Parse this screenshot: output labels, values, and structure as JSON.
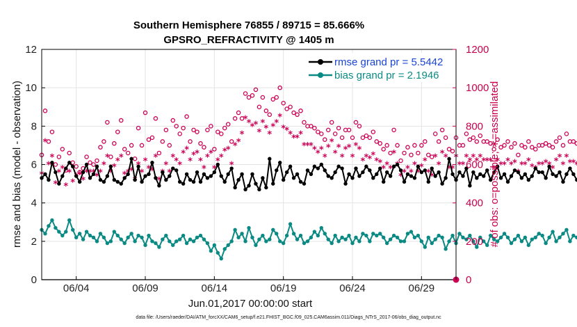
{
  "chart_data": {
    "type": "line",
    "title": "Southern Hemisphere 76855 / 89715 = 85.666%",
    "subtitle": "GPSRO_REFRACTIVITY @ 1405 m",
    "xlabel": "Jun.01,2017 00:00:00 start",
    "ylabel": "rmse and bias (model - observation)",
    "ylabel_right": "# of obs: o=possible; ∗=assimilated",
    "footnote": "data file: /Users/raeder/DAI/ATM_forcXX/CAM6_setup/f.e21.FHIST_BGC.f09_025.CAM6assim.011/Diags_NTrS_2017-06/obs_diag_output.nc",
    "xlim": [
      1.5,
      31.5
    ],
    "ylim": [
      0,
      12
    ],
    "ylim_right": [
      0,
      1200
    ],
    "grid": true,
    "legend_position": "top-right",
    "x_ticks": [
      4,
      9,
      14,
      19,
      24,
      29
    ],
    "x_tick_labels": [
      "06/04",
      "06/09",
      "06/14",
      "06/19",
      "06/24",
      "06/29"
    ],
    "y_ticks": [
      0,
      2,
      4,
      6,
      8,
      10,
      12
    ],
    "y_tick_labels": [
      "0",
      "2",
      "4",
      "6",
      "8",
      "10",
      "12"
    ],
    "y2_ticks": [
      0,
      200,
      400,
      600,
      800,
      1000,
      1200
    ],
    "y2_tick_labels": [
      "0",
      "200",
      "400",
      "600",
      "800",
      "1000",
      "1200"
    ],
    "colors": {
      "rmse": "#000000",
      "bias": "#0b8a84",
      "obs": "#cc0055",
      "grid": "#e3e3e3",
      "zero": "#b4b4b4",
      "legend_text": "#1a44d6"
    },
    "series": [
      {
        "name": "rmse grand pr = 5.5442",
        "axis": "left",
        "x_start": 1.5,
        "x_step": 0.25,
        "values": [
          5.3,
          5.5,
          5.2,
          6.1,
          5.6,
          5.0,
          5.4,
          5.8,
          6.1,
          5.9,
          5.4,
          5.1,
          5.6,
          6.0,
          5.3,
          5.5,
          5.9,
          5.2,
          5.1,
          5.4,
          5.9,
          5.2,
          5.1,
          5.0,
          5.3,
          5.5,
          6.3,
          5.2,
          5.9,
          5.1,
          5.4,
          5.5,
          6.1,
          5.3,
          4.9,
          5.6,
          5.2,
          5.4,
          5.8,
          5.7,
          5.1,
          5.0,
          5.5,
          5.2,
          5.1,
          5.6,
          5.1,
          5.5,
          5.3,
          5.4,
          5.6,
          6.0,
          5.4,
          5.1,
          5.5,
          5.8,
          4.8,
          5.2,
          5.5,
          4.7,
          4.9,
          5.5,
          5.0,
          4.7,
          5.3,
          4.8,
          6.3,
          5.0,
          5.7,
          6.1,
          5.2,
          5.6,
          5.9,
          5.3,
          5.5,
          5.1,
          5.0,
          5.7,
          5.5,
          5.9,
          5.8,
          6.0,
          5.7,
          5.4,
          5.3,
          5.6,
          5.9,
          5.8,
          5.0,
          5.5,
          5.3,
          5.8,
          5.4,
          5.6,
          5.9,
          5.7,
          5.3,
          5.5,
          5.8,
          5.1,
          5.6,
          5.4,
          5.9,
          6.0,
          5.7,
          5.1,
          5.5,
          5.4,
          5.3,
          5.9,
          5.6,
          5.7,
          5.1,
          5.8,
          5.4,
          5.6,
          5.0,
          5.3,
          6.3,
          5.5,
          5.2,
          5.6,
          5.4,
          5.8,
          4.9,
          5.6,
          5.3,
          5.5,
          5.4,
          5.7,
          5.2,
          5.6,
          5.9,
          5.3,
          5.5,
          5.1,
          5.4,
          5.7,
          5.6,
          5.3,
          5.5,
          5.2,
          5.4,
          5.8,
          5.6,
          5.6,
          5.3,
          5.9,
          5.5,
          5.4,
          5.6,
          5.1,
          5.5,
          5.8,
          5.5,
          5.2,
          5.6,
          5.3,
          5.5,
          5.0,
          6.0,
          5.4,
          5.3,
          5.5,
          5.8,
          5.6,
          5.0,
          5.4,
          5.9,
          5.2,
          5.6,
          5.8,
          5.4,
          5.5,
          5.7,
          5.2,
          5.6,
          5.3,
          4.8,
          5.4,
          5.2,
          5.6,
          5.9,
          5.0,
          5.3,
          5.6,
          5.1,
          5.3,
          5.5,
          5.7,
          5.5,
          5.1,
          5.7,
          5.4,
          5.3,
          5.5,
          5.1,
          5.3,
          5.2,
          5.6,
          5.4,
          5.1,
          5.3,
          5.5,
          5.2,
          5.1,
          5.6,
          5.4,
          5.8,
          5.3,
          5.6,
          5.9,
          5.5,
          5.4,
          5.2,
          5.8,
          5.7,
          5.3,
          4.8,
          5.9,
          5.5,
          5.6,
          5.2,
          5.4,
          5.0,
          5.5,
          5.8,
          5.4,
          5.1,
          5.3,
          5.5,
          5.3,
          5.2,
          5.4,
          5.1,
          5.6,
          5.3,
          5.4,
          5.1,
          5.7,
          5.4,
          5.3,
          5.6,
          5.2,
          5.5,
          5.0,
          5.4,
          5.3,
          5.4
        ]
      },
      {
        "name": "bias grand pr = 2.1946",
        "axis": "left",
        "x_start": 1.5,
        "x_step": 0.25,
        "values": [
          2.6,
          2.4,
          2.8,
          3.1,
          2.7,
          2.5,
          2.3,
          2.5,
          3.1,
          2.6,
          2.2,
          2.4,
          2.1,
          2.5,
          2.3,
          2.2,
          2.0,
          2.4,
          2.2,
          1.9,
          2.0,
          2.5,
          2.3,
          2.1,
          1.9,
          2.2,
          2.4,
          2.0,
          2.3,
          2.2,
          1.8,
          2.3,
          2.0,
          1.9,
          1.7,
          2.1,
          2.3,
          2.0,
          1.8,
          2.0,
          2.1,
          2.3,
          1.9,
          2.1,
          2.0,
          2.2,
          2.3,
          2.1,
          1.9,
          1.5,
          1.8,
          1.4,
          1.1,
          1.6,
          1.8,
          2.0,
          2.6,
          2.2,
          2.4,
          2.0,
          2.7,
          2.2,
          1.8,
          2.1,
          2.3,
          2.0,
          2.1,
          2.6,
          2.4,
          2.0,
          1.9,
          2.3,
          2.9,
          2.4,
          2.1,
          2.3,
          1.9,
          2.0,
          2.2,
          2.5,
          2.3,
          2.7,
          2.4,
          2.1,
          1.9,
          2.3,
          2.0,
          2.2,
          2.1,
          2.3,
          1.9,
          2.2,
          2.0,
          2.4,
          2.3,
          2.0,
          2.4,
          2.3,
          2.4,
          2.2,
          1.9,
          2.1,
          2.3,
          2.2,
          2.0,
          2.0,
          2.4,
          2.5,
          2.2,
          2.3,
          2.0,
          1.7,
          2.2,
          1.9,
          2.1,
          2.3,
          2.2,
          1.6,
          2.0,
          2.3,
          1.9,
          2.4,
          2.2,
          2.1,
          2.3,
          2.0,
          1.7,
          2.2,
          2.0,
          1.8,
          2.3,
          2.1,
          2.0,
          2.2,
          2.4,
          2.2,
          1.9,
          2.1,
          2.3,
          2.0,
          2.2,
          1.8,
          2.1,
          2.2,
          2.4,
          2.3,
          1.9,
          2.2,
          2.5,
          2.0,
          2.2,
          2.4,
          2.6,
          2.0,
          2.3,
          2.2,
          2.1,
          2.4,
          2.2,
          2.8,
          2.3,
          2.0,
          2.2,
          2.4,
          2.2,
          2.0,
          2.3,
          2.1,
          1.8,
          2.4,
          2.2,
          2.0,
          2.3,
          2.2,
          1.9,
          2.1,
          2.2,
          2.4,
          2.0,
          2.3,
          2.1,
          2.2,
          2.3,
          2.0,
          2.4,
          2.1,
          2.0,
          2.3,
          1.9,
          2.0,
          2.2,
          2.4,
          2.3,
          2.4,
          2.2,
          2.0,
          2.2,
          1.9,
          2.4,
          2.3,
          1.7,
          2.2,
          2.6,
          2.5,
          2.1,
          3.1,
          2.7,
          2.4,
          2.6,
          2.3,
          2.1,
          2.0,
          2.2,
          2.4,
          2.1,
          2.0,
          2.2,
          1.9,
          2.1,
          2.0,
          2.3,
          2.1,
          1.9,
          2.2,
          2.0,
          2.3,
          2.0,
          2.1,
          2.3,
          2.2,
          1.9,
          2.0,
          1.8,
          2.1,
          2.2,
          1.9,
          2.1,
          2.0,
          1.7,
          1.8
        ]
      },
      {
        "name": "possible obs",
        "axis": "right",
        "marker": "o",
        "x_start": 1.5,
        "x_step": 0.25,
        "values": [
          650,
          880,
          720,
          770,
          600,
          640,
          680,
          570,
          660,
          610,
          590,
          560,
          580,
          640,
          610,
          600,
          620,
          690,
          720,
          820,
          640,
          710,
          770,
          830,
          680,
          660,
          700,
          630,
          790,
          700,
          870,
          730,
          740,
          840,
          660,
          720,
          780,
          700,
          830,
          800,
          760,
          790,
          850,
          720,
          780,
          770,
          710,
          690,
          780,
          800,
          680,
          770,
          760,
          790,
          810,
          720,
          840,
          870,
          840,
          970,
          950,
          960,
          990,
          900,
          950,
          880,
          860,
          940,
          950,
          1000,
          920,
          890,
          900,
          870,
          860,
          880,
          820,
          800,
          800,
          790,
          770,
          760,
          730,
          780,
          820,
          760,
          790,
          740,
          780,
          780,
          740,
          820,
          800,
          740,
          750,
          740,
          770,
          720,
          710,
          680,
          700,
          660,
          780,
          700,
          620,
          660,
          690,
          650,
          700,
          660,
          700,
          720,
          650,
          640,
          760,
          720,
          780,
          740,
          680,
          670,
          740,
          700,
          700,
          760,
          730,
          740,
          720,
          750,
          720,
          720,
          710,
          680,
          730,
          690,
          700,
          720,
          690,
          710,
          650,
          700,
          690,
          720,
          690,
          680,
          700,
          700,
          710,
          700,
          690,
          720,
          740,
          700,
          760,
          720,
          720,
          710,
          700,
          680,
          690,
          710,
          820,
          790,
          830,
          760,
          790,
          810,
          760,
          770,
          730,
          750,
          720,
          700,
          740,
          780,
          760,
          800,
          780,
          760,
          740,
          760,
          750,
          770,
          740,
          680,
          740,
          760,
          750,
          730,
          740,
          720,
          700,
          760,
          780,
          740,
          690,
          730,
          700,
          760,
          780,
          740,
          820,
          860,
          760,
          730,
          760,
          850,
          830,
          800,
          770,
          780,
          800,
          710,
          790,
          750,
          720,
          730,
          780,
          840,
          860,
          790,
          720,
          690,
          700,
          760,
          700,
          740,
          780,
          760,
          710,
          740,
          690,
          700,
          680,
          700,
          620,
          700,
          720,
          760,
          780,
          870,
          740,
          770
        ]
      },
      {
        "name": "assimilated obs",
        "axis": "right",
        "marker": "*",
        "x_start": 1.5,
        "x_step": 0.25,
        "values": [
          550,
          720,
          600,
          640,
          500,
          560,
          580,
          490,
          560,
          510,
          540,
          550,
          520,
          560,
          560,
          560,
          540,
          560,
          600,
          640,
          560,
          590,
          620,
          640,
          550,
          560,
          570,
          520,
          600,
          560,
          620,
          580,
          570,
          640,
          520,
          560,
          600,
          560,
          640,
          620,
          600,
          660,
          680,
          620,
          650,
          660,
          620,
          580,
          640,
          660,
          580,
          620,
          640,
          670,
          680,
          600,
          700,
          720,
          760,
          840,
          820,
          800,
          810,
          770,
          820,
          790,
          760,
          800,
          820,
          850,
          790,
          780,
          760,
          740,
          740,
          760,
          700,
          700,
          700,
          680,
          660,
          680,
          640,
          690,
          720,
          660,
          690,
          640,
          680,
          690,
          640,
          700,
          680,
          620,
          640,
          630,
          650,
          620,
          610,
          580,
          600,
          580,
          660,
          600,
          540,
          560,
          580,
          560,
          600,
          560,
          590,
          620,
          560,
          540,
          640,
          600,
          660,
          640,
          580,
          580,
          640,
          600,
          600,
          640,
          620,
          640,
          620,
          640,
          620,
          620,
          620,
          580,
          620,
          600,
          600,
          620,
          600,
          610,
          560,
          600,
          600,
          620,
          590,
          580,
          600,
          600,
          610,
          600,
          580,
          620,
          640,
          600,
          640,
          610,
          610,
          600,
          600,
          580,
          590,
          610,
          690,
          670,
          700,
          640,
          670,
          690,
          640,
          650,
          620,
          640,
          620,
          600,
          630,
          660,
          640,
          680,
          660,
          640,
          630,
          640,
          630,
          650,
          630,
          580,
          630,
          640,
          640,
          620,
          630,
          610,
          600,
          640,
          660,
          630,
          590,
          620,
          600,
          640,
          660,
          620,
          690,
          720,
          640,
          620,
          640,
          700,
          680,
          660,
          650,
          650,
          660,
          600,
          660,
          640,
          610,
          620,
          650,
          690,
          710,
          650,
          600,
          580,
          580,
          630,
          580,
          620,
          660,
          640,
          600,
          620,
          580,
          580,
          560,
          560,
          450,
          500,
          600,
          620,
          640,
          640,
          670,
          680
        ]
      }
    ]
  }
}
